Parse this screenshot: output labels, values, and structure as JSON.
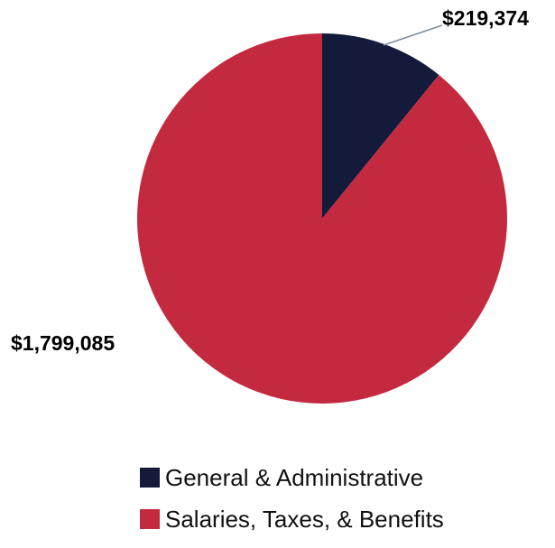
{
  "chart_data": {
    "type": "pie",
    "title": "",
    "slices": [
      {
        "name": "General & Administrative",
        "value": 219374,
        "label": "$219,374",
        "color": "#141a3a"
      },
      {
        "name": "Salaries, Taxes, & Benefits",
        "value": 1799085,
        "label": "$1,799,085",
        "color": "#c42a3f"
      }
    ],
    "legend_position": "bottom"
  }
}
